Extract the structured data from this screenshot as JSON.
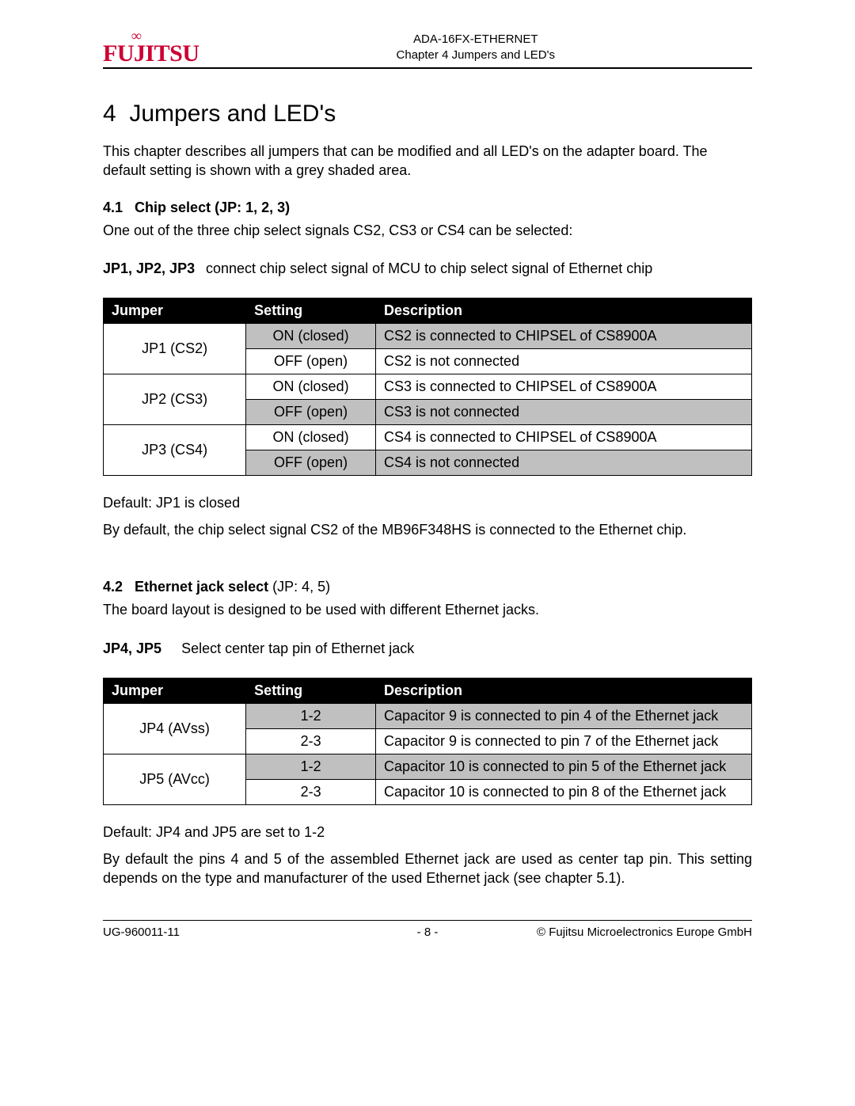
{
  "header": {
    "logo_text": "FUJITSU",
    "line1": "ADA-16FX-ETHERNET",
    "line2": "Chapter 4 Jumpers and LED's"
  },
  "chapter": {
    "number": "4",
    "title": "Jumpers and LED's",
    "intro": "This chapter describes all jumpers that can be modified and all LED's on the adapter board. The default setting is shown with a grey shaded area."
  },
  "section41": {
    "num": "4.1",
    "title": "Chip select (JP: 1, 2, 3)",
    "intro": "One out of the three chip select signals CS2, CS3 or CS4 can be selected:",
    "jp_label": "JP1, JP2, JP3",
    "jp_desc": "connect chip select signal of MCU to chip select signal of Ethernet chip",
    "headers": {
      "jumper": "Jumper",
      "setting": "Setting",
      "desc": "Description"
    },
    "rows": [
      {
        "jumper": "JP1 (CS2)",
        "settings": [
          {
            "setting": "ON (closed)",
            "desc": "CS2 is connected to CHIPSEL of CS8900A",
            "shaded": true
          },
          {
            "setting": "OFF (open)",
            "desc": "CS2 is not connected",
            "shaded": false
          }
        ]
      },
      {
        "jumper": "JP2 (CS3)",
        "settings": [
          {
            "setting": "ON (closed)",
            "desc": "CS3 is connected to CHIPSEL of CS8900A",
            "shaded": false
          },
          {
            "setting": "OFF (open)",
            "desc": "CS3 is not connected",
            "shaded": true
          }
        ]
      },
      {
        "jumper": "JP3 (CS4)",
        "settings": [
          {
            "setting": "ON (closed)",
            "desc": "CS4 is connected to CHIPSEL of CS8900A",
            "shaded": false
          },
          {
            "setting": "OFF (open)",
            "desc": "CS4 is not connected",
            "shaded": true
          }
        ]
      }
    ],
    "default_note": "Default: JP1 is closed",
    "default_para": "By default, the chip select signal CS2 of the MB96F348HS is connected to the Ethernet chip."
  },
  "section42": {
    "num": "4.2",
    "title_bold": "Ethernet jack select",
    "title_rest": " (JP: 4, 5)",
    "intro": "The board layout is designed to be used with different Ethernet jacks.",
    "jp_label": "JP4, JP5",
    "jp_desc": "Select center tap pin of Ethernet jack",
    "headers": {
      "jumper": "Jumper",
      "setting": "Setting",
      "desc": "Description"
    },
    "rows": [
      {
        "jumper": "JP4 (AVss)",
        "settings": [
          {
            "setting": "1-2",
            "desc": "Capacitor 9 is connected to pin 4 of the Ethernet jack",
            "shaded": true
          },
          {
            "setting": "2-3",
            "desc": "Capacitor 9 is connected to pin 7 of the Ethernet jack",
            "shaded": false
          }
        ]
      },
      {
        "jumper": "JP5 (AVcc)",
        "settings": [
          {
            "setting": "1-2",
            "desc": "Capacitor 10 is connected to pin 5 of the Ethernet jack",
            "shaded": true
          },
          {
            "setting": "2-3",
            "desc": "Capacitor 10 is connected to pin 8 of the Ethernet jack",
            "shaded": false
          }
        ]
      }
    ],
    "default_note": "Default: JP4 and JP5 are set to 1-2",
    "default_para": "By default the pins 4 and 5 of the assembled Ethernet jack are used as center tap pin. This setting depends on the type and manufacturer of the used Ethernet jack (see chapter 5.1)."
  },
  "footer": {
    "left": "UG-960011-11",
    "center": "- 8 -",
    "right": "© Fujitsu Microelectronics Europe GmbH"
  }
}
